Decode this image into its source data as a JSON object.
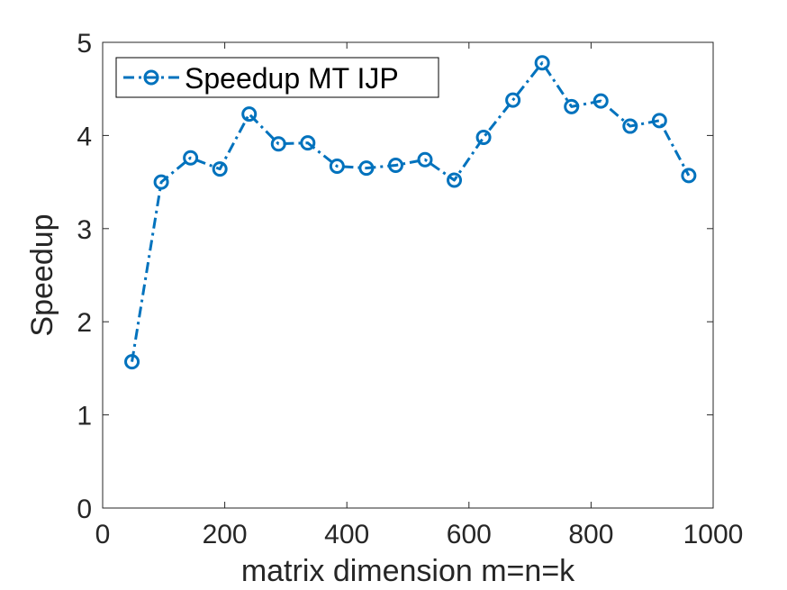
{
  "chart_data": {
    "type": "line",
    "xlabel": "matrix dimension m=n=k",
    "ylabel": "Speedup",
    "xlim": [
      0,
      1000
    ],
    "ylim": [
      0,
      5
    ],
    "x_ticks": [
      "0",
      "200",
      "400",
      "600",
      "800",
      "1000"
    ],
    "y_ticks": [
      "0",
      "1",
      "2",
      "3",
      "4",
      "5"
    ],
    "grid": false,
    "legend_position": "top-left",
    "series": [
      {
        "name": "Speedup MT IJP",
        "color": "#0072BD",
        "line_style": "dash-dot",
        "marker": "circle",
        "x": [
          48,
          96,
          144,
          192,
          240,
          288,
          336,
          384,
          432,
          480,
          528,
          576,
          624,
          672,
          720,
          768,
          816,
          864,
          912,
          960
        ],
        "y": [
          1.57,
          3.5,
          3.76,
          3.64,
          4.23,
          3.91,
          3.92,
          3.67,
          3.65,
          3.68,
          3.74,
          3.52,
          3.98,
          4.38,
          4.78,
          4.31,
          4.37,
          4.1,
          4.16,
          3.57
        ]
      }
    ]
  }
}
